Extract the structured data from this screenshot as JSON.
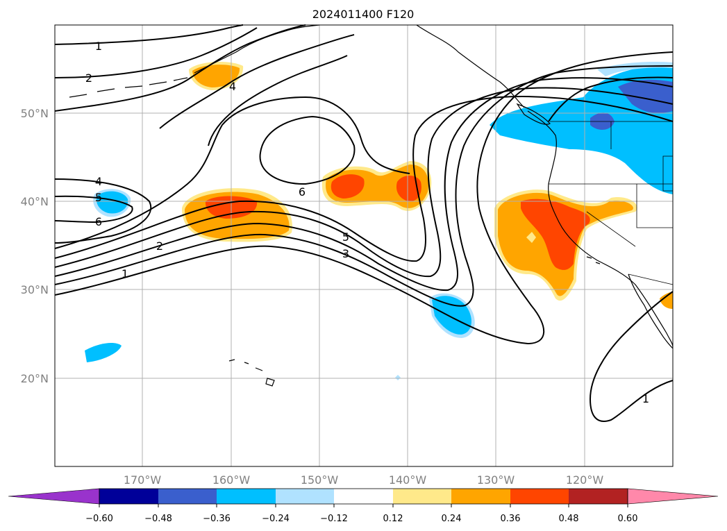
{
  "title": "2024011400 F120",
  "map": {
    "lat_labels": [
      "50°N",
      "40°N",
      "30°N",
      "20°N"
    ],
    "lon_labels": [
      "170°W",
      "160°W",
      "150°W",
      "140°W",
      "130°W",
      "120°W"
    ],
    "contour_labels": [
      "1",
      "2",
      "4",
      "4",
      "5",
      "6",
      "2",
      "1",
      "6",
      "5",
      "3",
      "1"
    ]
  },
  "colorbar": {
    "tick_labels": [
      "−0.60",
      "−0.48",
      "−0.36",
      "−0.24",
      "−0.12",
      "0.12",
      "0.24",
      "0.36",
      "0.48",
      "0.60"
    ],
    "colors": [
      "#9933cc",
      "#000099",
      "#3a5fcd",
      "#00bfff",
      "#b0e2ff",
      "#ffffff",
      "#ffe98a",
      "#ffa500",
      "#ff4500",
      "#b22222",
      "#ff88aa"
    ]
  }
}
